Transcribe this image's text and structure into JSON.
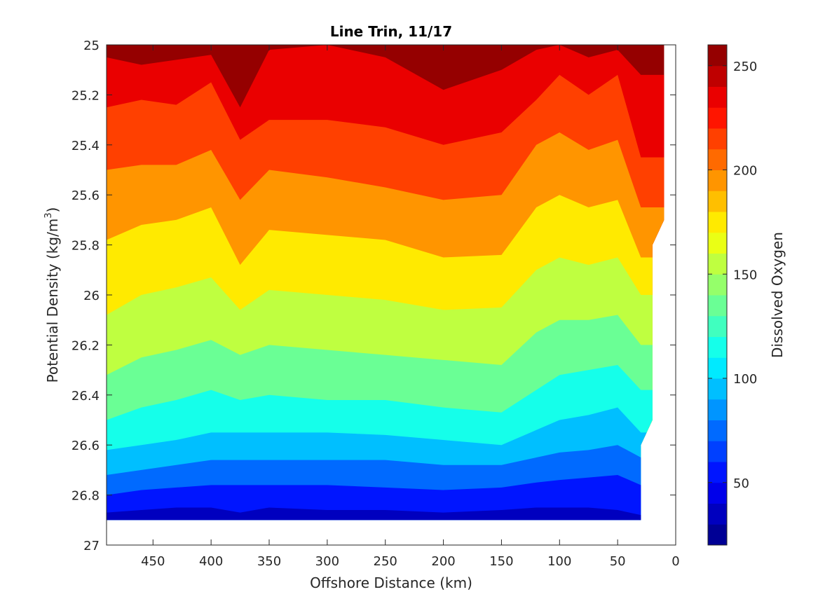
{
  "chart_data": {
    "type": "contourf",
    "title": "Line Trin, 11/17",
    "xlabel": "Offshore Distance (km)",
    "ylabel_main": "Potential Density (kg/m",
    "ylabel_sup": "3",
    "ylabel_end": ")",
    "colorbar_label": "Dissolved Oxygen",
    "x_axis_reversed": true,
    "y_axis_reversed": true,
    "xlim": [
      0,
      490
    ],
    "ylim": [
      25.0,
      27.0
    ],
    "clim": [
      20,
      260
    ],
    "contour_step": 10,
    "x_ticks": [
      450,
      400,
      350,
      300,
      250,
      200,
      150,
      100,
      50,
      0
    ],
    "x_tick_labels": [
      "450",
      "400",
      "350",
      "300",
      "250",
      "200",
      "150",
      "100",
      "50",
      "0"
    ],
    "y_ticks": [
      25.0,
      25.2,
      25.4,
      25.6,
      25.8,
      26.0,
      26.2,
      26.4,
      26.6,
      26.8,
      27.0
    ],
    "y_tick_labels": [
      "25",
      "25.2",
      "25.4",
      "25.6",
      "25.8",
      "26",
      "26.2",
      "26.4",
      "26.6",
      "26.8",
      "27"
    ],
    "colorbar_ticks": [
      50,
      100,
      150,
      200,
      250
    ],
    "colorbar_tick_labels": [
      "50",
      "100",
      "150",
      "200",
      "250"
    ],
    "colormap": "jet",
    "data_extent": {
      "x_max_km": 490,
      "density_bottom": 26.9,
      "shoreward_edge": [
        [
          10,
          25.0
        ],
        [
          10,
          25.7
        ],
        [
          20,
          25.8
        ],
        [
          20,
          26.5
        ],
        [
          30,
          26.6
        ],
        [
          30,
          26.9
        ]
      ]
    },
    "isoline_density_profiles": {
      "x": [
        490,
        460,
        430,
        400,
        375,
        350,
        300,
        250,
        200,
        150,
        120,
        100,
        75,
        50,
        30
      ],
      "levels": [
        {
          "oxygen": 240,
          "density": [
            25.05,
            25.08,
            25.06,
            25.04,
            25.25,
            25.02,
            25.0,
            25.05,
            25.18,
            25.1,
            25.02,
            25.0,
            25.05,
            25.02,
            25.12
          ]
        },
        {
          "oxygen": 220,
          "density": [
            25.25,
            25.22,
            25.24,
            25.15,
            25.38,
            25.3,
            25.3,
            25.33,
            25.4,
            25.35,
            25.22,
            25.12,
            25.2,
            25.12,
            25.45
          ]
        },
        {
          "oxygen": 200,
          "density": [
            25.5,
            25.48,
            25.48,
            25.42,
            25.62,
            25.5,
            25.53,
            25.57,
            25.62,
            25.6,
            25.4,
            25.35,
            25.42,
            25.38,
            25.65
          ]
        },
        {
          "oxygen": 180,
          "density": [
            25.78,
            25.72,
            25.7,
            25.65,
            25.88,
            25.74,
            25.76,
            25.78,
            25.85,
            25.84,
            25.65,
            25.6,
            25.65,
            25.62,
            25.85
          ]
        },
        {
          "oxygen": 160,
          "density": [
            26.08,
            26.0,
            25.97,
            25.93,
            26.06,
            25.98,
            26.0,
            26.02,
            26.06,
            26.05,
            25.9,
            25.85,
            25.88,
            25.85,
            26.0
          ]
        },
        {
          "oxygen": 140,
          "density": [
            26.32,
            26.25,
            26.22,
            26.18,
            26.24,
            26.2,
            26.22,
            26.24,
            26.26,
            26.28,
            26.15,
            26.1,
            26.1,
            26.08,
            26.2
          ]
        },
        {
          "oxygen": 120,
          "density": [
            26.5,
            26.45,
            26.42,
            26.38,
            26.42,
            26.4,
            26.42,
            26.42,
            26.45,
            26.47,
            26.38,
            26.32,
            26.3,
            26.28,
            26.38
          ]
        },
        {
          "oxygen": 100,
          "density": [
            26.62,
            26.6,
            26.58,
            26.55,
            26.55,
            26.55,
            26.55,
            26.56,
            26.58,
            26.6,
            26.54,
            26.5,
            26.48,
            26.45,
            26.55
          ]
        },
        {
          "oxygen": 80,
          "density": [
            26.72,
            26.7,
            26.68,
            26.66,
            26.66,
            26.66,
            26.66,
            26.66,
            26.68,
            26.68,
            26.65,
            26.63,
            26.62,
            26.6,
            26.65
          ]
        },
        {
          "oxygen": 60,
          "density": [
            26.8,
            26.78,
            26.77,
            26.76,
            26.76,
            26.76,
            26.76,
            26.77,
            26.78,
            26.77,
            26.75,
            26.74,
            26.73,
            26.72,
            26.76
          ]
        },
        {
          "oxygen": 40,
          "density": [
            26.87,
            26.86,
            26.85,
            26.85,
            26.87,
            26.85,
            26.86,
            26.86,
            26.87,
            26.86,
            26.85,
            26.85,
            26.85,
            26.86,
            26.88
          ]
        }
      ]
    }
  }
}
